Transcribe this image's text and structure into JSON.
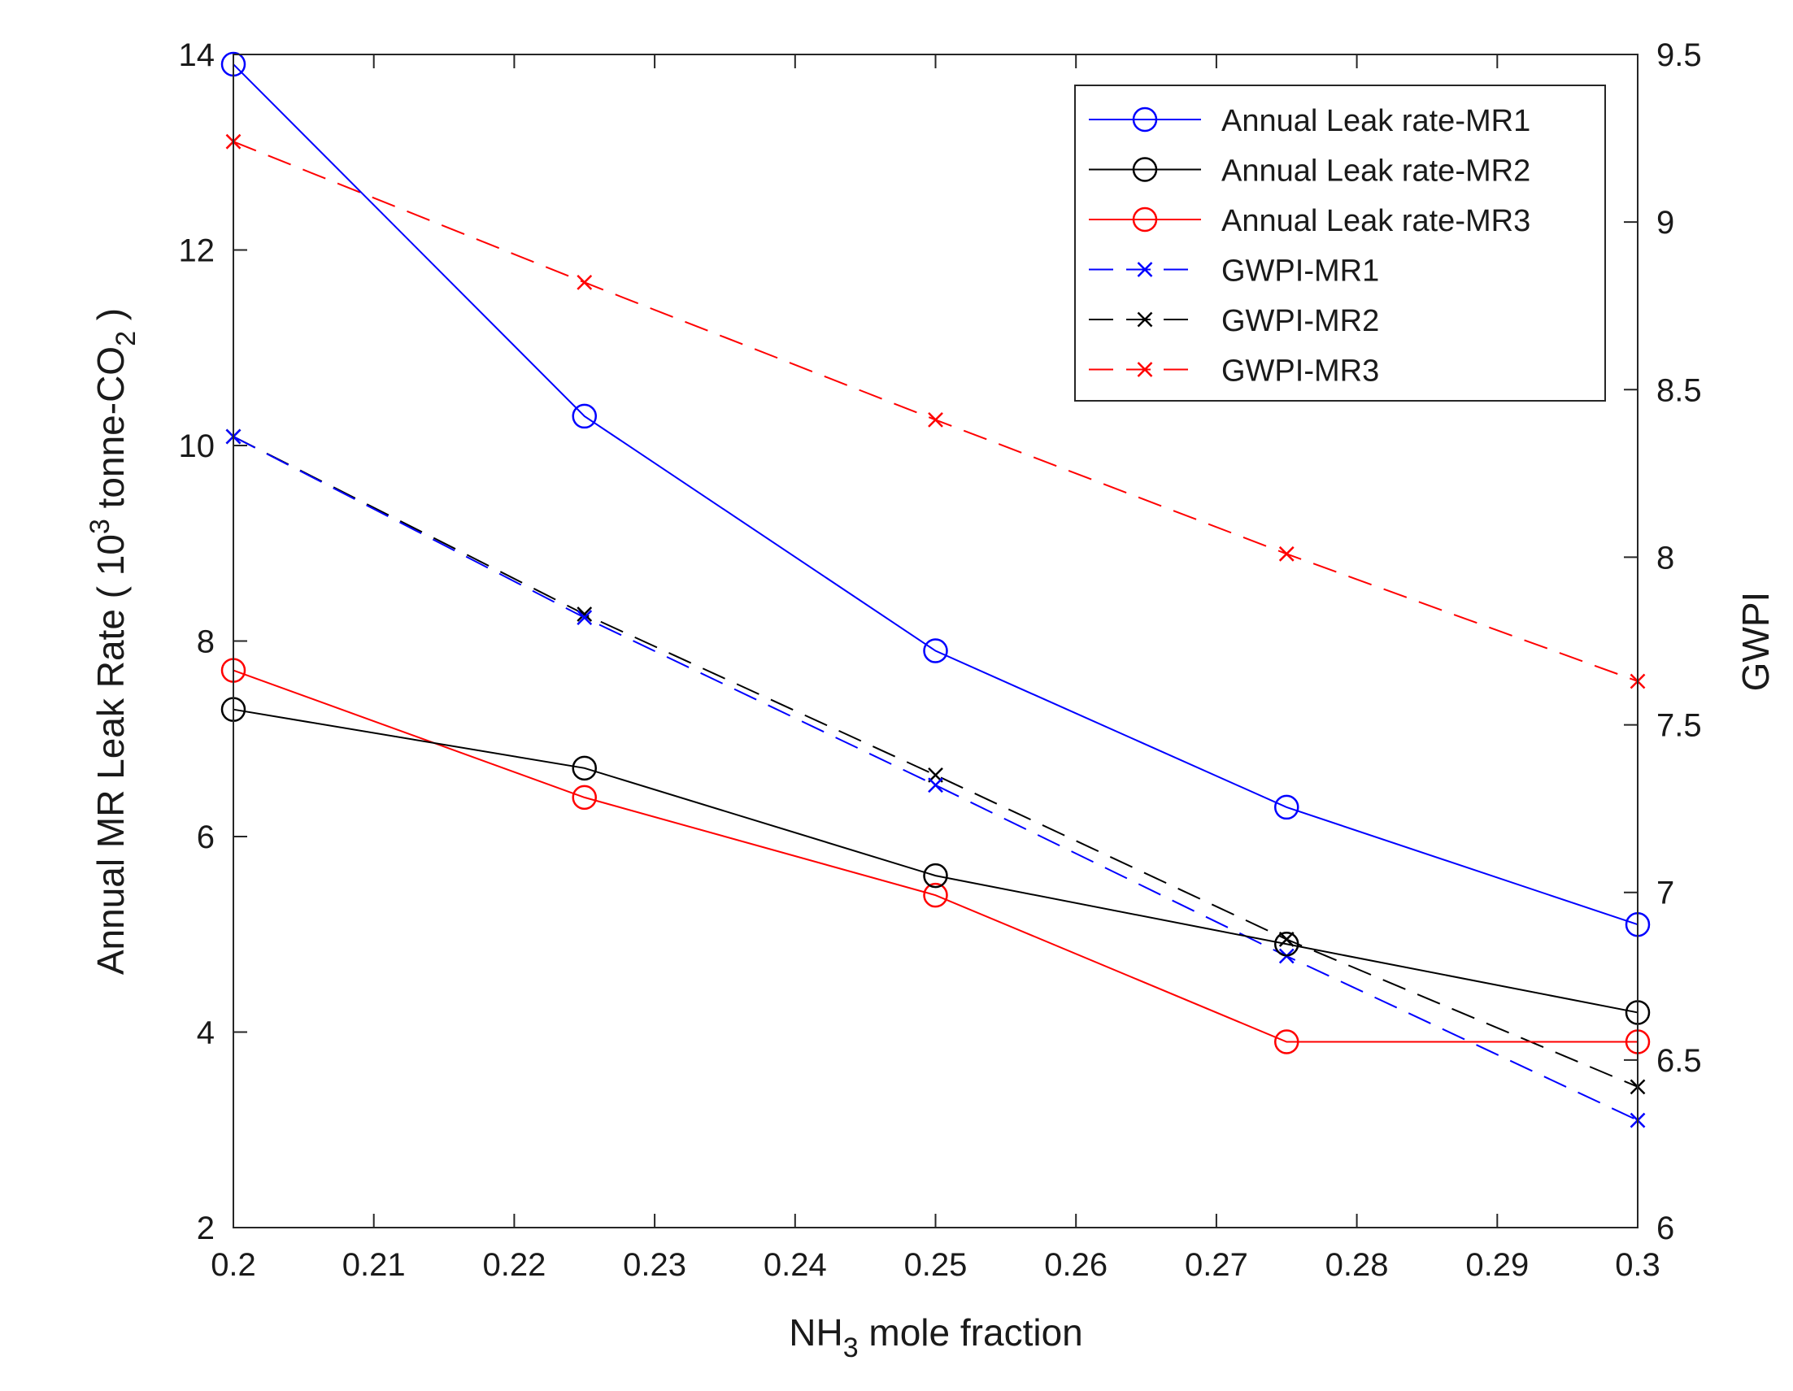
{
  "chart_data": {
    "type": "line",
    "x": [
      0.2,
      0.225,
      0.25,
      0.275,
      0.3
    ],
    "xlim": [
      0.2,
      0.3
    ],
    "xticks": [
      "0.2",
      "0.21",
      "0.22",
      "0.23",
      "0.24",
      "0.25",
      "0.26",
      "0.27",
      "0.28",
      "0.29",
      "0.3"
    ],
    "xlabel": {
      "main": "NH",
      "sub": "3",
      "rest": " mole fraction"
    },
    "ylabel_left": {
      "main": "Annual MR Leak Rate ( 10",
      "sup": "3",
      "mid": " tonne-CO",
      "sub": "2",
      "end": " )"
    },
    "ylabel_right": "GWPI",
    "ylim_left": [
      2,
      14
    ],
    "ylim_right": [
      6,
      9.5
    ],
    "yticks_left": [
      "2",
      "4",
      "6",
      "8",
      "10",
      "12",
      "14"
    ],
    "yticks_right": [
      "6",
      "6.5",
      "7",
      "7.5",
      "8",
      "8.5",
      "9",
      "9.5"
    ],
    "grid": false,
    "legend_position": "top-right",
    "series": [
      {
        "name": "Annual Leak rate-MR1",
        "axis": "left",
        "color": "#0000ff",
        "style": "solid",
        "marker": "circle",
        "values": [
          13.9,
          10.3,
          7.9,
          6.3,
          5.1
        ]
      },
      {
        "name": "Annual Leak rate-MR2",
        "axis": "left",
        "color": "#000000",
        "style": "solid",
        "marker": "circle",
        "values": [
          7.3,
          6.7,
          5.6,
          4.9,
          4.2
        ]
      },
      {
        "name": "Annual Leak rate-MR3",
        "axis": "left",
        "color": "#ff0000",
        "style": "solid",
        "marker": "circle",
        "values": [
          7.7,
          6.4,
          5.4,
          3.9,
          3.9
        ]
      },
      {
        "name": "GWPI-MR1",
        "axis": "right",
        "color": "#0000ff",
        "style": "dashed",
        "marker": "x",
        "values": [
          8.36,
          7.82,
          7.32,
          6.81,
          6.32
        ]
      },
      {
        "name": "GWPI-MR2",
        "axis": "right",
        "color": "#000000",
        "style": "dashed",
        "marker": "x",
        "values": [
          8.36,
          7.83,
          7.35,
          6.86,
          6.42
        ]
      },
      {
        "name": "GWPI-MR3",
        "axis": "right",
        "color": "#ff0000",
        "style": "dashed",
        "marker": "x",
        "values": [
          9.24,
          8.82,
          8.41,
          8.01,
          7.63
        ]
      }
    ]
  }
}
